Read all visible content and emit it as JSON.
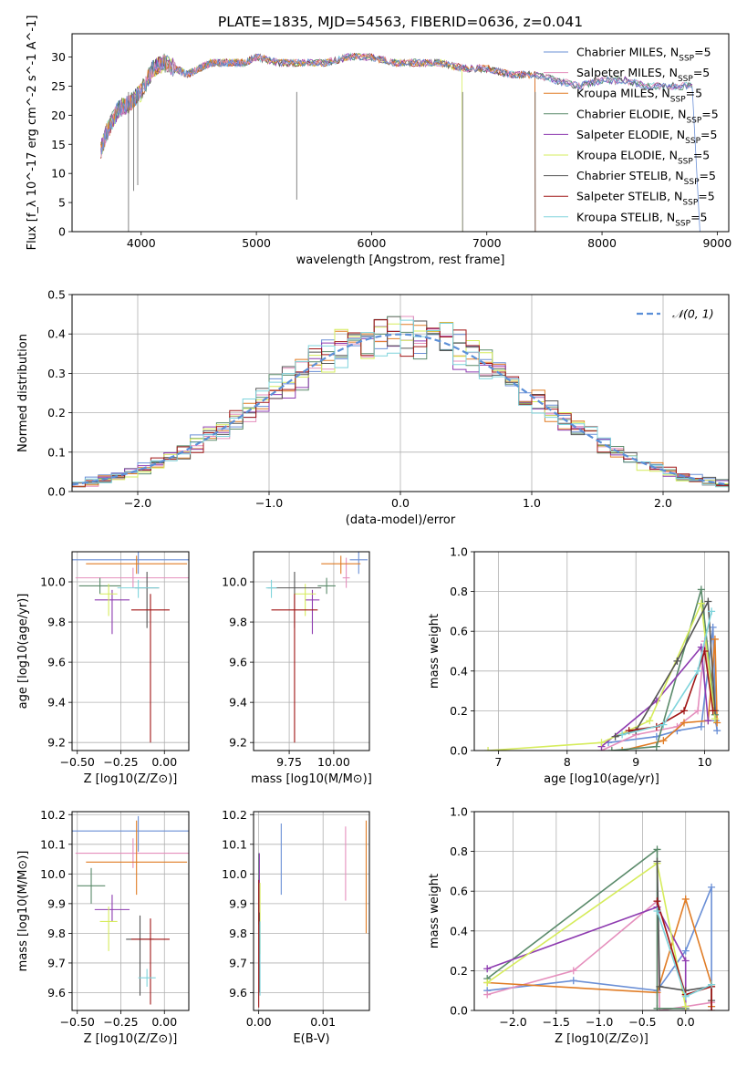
{
  "figure_title": "PLATE=1835, MJD=54563, FIBERID=0636, z=0.041",
  "series_names": [
    "Chabrier MILES, N_SSP=5",
    "Salpeter MILES, N_SSP=5",
    "Kroupa MILES, N_SSP=5",
    "Chabrier ELODIE, N_SSP=5",
    "Salpeter ELODIE, N_SSP=5",
    "Kroupa ELODIE, N_SSP=5",
    "Chabrier STELIB, N_SSP=5",
    "Salpeter STELIB, N_SSP=5",
    "Kroupa STELIB, N_SSP=5"
  ],
  "colors": [
    "#6a8fd6",
    "#e58fbd",
    "#e07c25",
    "#5a8a6a",
    "#8e3bb0",
    "#d6ec5c",
    "#555555",
    "#a01515",
    "#7fd4dc"
  ],
  "chart_data": [
    {
      "id": "spectrum",
      "type": "line",
      "xlabel": "wavelength [Angstrom, rest frame]",
      "ylabel": "Flux [f_λ 10^-17 erg cm^-2 s^-1 A^-1]",
      "xlim": [
        3400,
        9100
      ],
      "ylim": [
        0,
        34
      ],
      "xticks": [
        4000,
        5000,
        6000,
        7000,
        8000,
        9000
      ],
      "yticks": [
        0,
        5,
        10,
        15,
        20,
        25,
        30
      ],
      "grid": false,
      "legend": "upper right",
      "x": [
        3650,
        3700,
        3800,
        3900,
        4000,
        4100,
        4200,
        4300,
        4400,
        4500,
        4600,
        4700,
        4800,
        4900,
        5000,
        5200,
        5400,
        5600,
        5800,
        6000,
        6200,
        6400,
        6600,
        6800,
        7000,
        7200,
        7400,
        7600,
        7800,
        8000,
        8200,
        8400,
        8600,
        8800
      ],
      "y": [
        14,
        17,
        21,
        22,
        24,
        28,
        29,
        28,
        27,
        28,
        29,
        29,
        29,
        29,
        30,
        29,
        29,
        29,
        30,
        30,
        29,
        29,
        29,
        28,
        28,
        27,
        27,
        26,
        25,
        26,
        26,
        25,
        25,
        25
      ],
      "cutoffs": [
        {
          "series": 0,
          "x_end": 8850
        },
        {
          "series": 2,
          "x_end": 7420
        },
        {
          "series": 5,
          "x_end": 6790
        },
        {
          "series": 7,
          "x_end": 7420
        }
      ],
      "dips": [
        {
          "x": 3890,
          "y": 0
        },
        {
          "x": 3935,
          "y": 7
        },
        {
          "x": 3970,
          "y": 8
        },
        {
          "x": 5350,
          "y": 5.5
        },
        {
          "x": 6790,
          "y": 0
        },
        {
          "x": 7420,
          "y": 0
        }
      ]
    },
    {
      "id": "residuals",
      "type": "line",
      "xlabel": "(data-model)/error",
      "ylabel": "Normed distribution",
      "xlim": [
        -2.5,
        2.5
      ],
      "ylim": [
        0,
        0.5
      ],
      "xticks": [
        -2,
        -1,
        0,
        1,
        2
      ],
      "yticks": [
        0.0,
        0.1,
        0.2,
        0.3,
        0.4,
        0.5
      ],
      "grid": true,
      "legend": "upper right",
      "reference_name": "𝒩(0, 1)",
      "bin_width": 0.1,
      "bin_start": -2.5
    },
    {
      "id": "age_vs_Z",
      "type": "scatter",
      "xlabel": "Z [log10(Z/Z⊙)]",
      "ylabel": "age  [log10(age/yr)]",
      "xlim": [
        -0.53,
        0.14
      ],
      "ylim": [
        9.16,
        10.15
      ],
      "xticks": [
        -0.5,
        -0.25,
        0.0
      ],
      "yticks": [
        9.2,
        9.4,
        9.6,
        9.8,
        10.0
      ],
      "grid": true,
      "points": [
        {
          "x": -0.15,
          "y": 10.11,
          "xerr": 0.4,
          "yerr": [
            0.07,
            0.05
          ]
        },
        {
          "x": -0.18,
          "y": 10.02,
          "xerr": 0.33,
          "yerr": [
            0.05,
            0.05
          ]
        },
        {
          "x": -0.16,
          "y": 10.09,
          "xerr": 0.29,
          "yerr": [
            0.05,
            0.04
          ]
        },
        {
          "x": -0.37,
          "y": 9.98,
          "xerr": 0.12,
          "yerr": [
            0.04,
            0.04
          ]
        },
        {
          "x": -0.3,
          "y": 9.91,
          "xerr": 0.1,
          "yerr": [
            0.17,
            0.05
          ]
        },
        {
          "x": -0.32,
          "y": 9.94,
          "xerr": 0.05,
          "yerr": [
            0.11,
            0.05
          ]
        },
        {
          "x": -0.1,
          "y": 9.97,
          "xerr": 0.07,
          "yerr": [
            0.2,
            0.08
          ]
        },
        {
          "x": -0.08,
          "y": 9.86,
          "xerr": 0.11,
          "yerr": [
            0.66,
            0.08
          ]
        },
        {
          "x": -0.15,
          "y": 9.97,
          "xerr": 0.12,
          "yerr": [
            0.05,
            0.04
          ]
        }
      ]
    },
    {
      "id": "age_vs_mass",
      "type": "scatter",
      "xlabel": "mass [log10(M/M⊙)]",
      "ylabel": "",
      "xlim": [
        9.55,
        10.2
      ],
      "ylim": [
        9.16,
        10.15
      ],
      "xticks": [
        9.75,
        10.0
      ],
      "yticks": [
        9.2,
        9.4,
        9.6,
        9.8,
        10.0
      ],
      "grid": true,
      "points": [
        {
          "x": 10.14,
          "y": 10.11,
          "xerr": 0.05,
          "yerr": [
            0.07,
            0.05
          ]
        },
        {
          "x": 10.07,
          "y": 10.02,
          "xerr": 0.02,
          "yerr": [
            0.05,
            0.1
          ]
        },
        {
          "x": 10.04,
          "y": 10.09,
          "xerr": 0.11,
          "yerr": [
            0.05,
            0.04
          ]
        },
        {
          "x": 9.96,
          "y": 9.98,
          "xerr": 0.05,
          "yerr": [
            0.04,
            0.04
          ]
        },
        {
          "x": 9.88,
          "y": 9.91,
          "xerr": 0.04,
          "yerr": [
            0.17,
            0.05
          ]
        },
        {
          "x": 9.84,
          "y": 9.94,
          "xerr": 0.06,
          "yerr": [
            0.11,
            0.05
          ]
        },
        {
          "x": 9.78,
          "y": 9.97,
          "xerr": 0.15,
          "yerr": [
            0.2,
            0.08
          ]
        },
        {
          "x": 9.78,
          "y": 9.86,
          "xerr": 0.13,
          "yerr": [
            0.66,
            0.08
          ]
        },
        {
          "x": 9.65,
          "y": 9.97,
          "xerr": 0.03,
          "yerr": [
            0.05,
            0.04
          ]
        }
      ]
    },
    {
      "id": "weight_vs_age",
      "type": "line",
      "xlabel": "age  [log10(age/yr)]",
      "ylabel": "mass weight",
      "xlim": [
        6.65,
        10.35
      ],
      "ylim": [
        0,
        1
      ],
      "xticks": [
        7,
        8,
        9,
        10
      ],
      "yticks": [
        0.0,
        0.2,
        0.4,
        0.6,
        0.8,
        1.0
      ],
      "grid": true,
      "series": [
        {
          "x": [
            8.6,
            9.3,
            9.6,
            9.95,
            10.12,
            10.16,
            10.18
          ],
          "y": [
            0.04,
            0.07,
            0.1,
            0.12,
            0.62,
            0.15,
            0.1
          ]
        },
        {
          "x": [
            8.5,
            9.0,
            9.6,
            9.9,
            10.0,
            10.15
          ],
          "y": [
            0.0,
            0.08,
            0.12,
            0.2,
            0.55,
            0.2
          ]
        },
        {
          "x": [
            8.8,
            9.4,
            9.7,
            10.05,
            10.15,
            10.18
          ],
          "y": [
            0.0,
            0.05,
            0.14,
            0.15,
            0.56,
            0.14
          ]
        },
        {
          "x": [
            8.65,
            9.3,
            9.95,
            10.15
          ],
          "y": [
            0.0,
            0.02,
            0.81,
            0.18
          ]
        },
        {
          "x": [
            8.5,
            9.3,
            9.95,
            10.05
          ],
          "y": [
            0.02,
            0.25,
            0.52,
            0.15
          ]
        },
        {
          "x": [
            6.85,
            8.5,
            9.2,
            9.95,
            10.15
          ],
          "y": [
            0.0,
            0.04,
            0.15,
            0.74,
            0.16
          ]
        },
        {
          "x": [
            8.7,
            9.0,
            9.6,
            10.05,
            10.15
          ],
          "y": [
            0.07,
            0.1,
            0.45,
            0.75,
            0.2
          ]
        },
        {
          "x": [
            8.9,
            9.3,
            9.7,
            10.0,
            10.12
          ],
          "y": [
            0.1,
            0.12,
            0.2,
            0.5,
            0.2
          ]
        },
        {
          "x": [
            8.8,
            9.4,
            9.9,
            10.1
          ],
          "y": [
            0.08,
            0.13,
            0.4,
            0.7
          ]
        }
      ]
    },
    {
      "id": "mass_vs_Z",
      "type": "scatter",
      "xlabel": "Z [log10(Z/Z⊙)]",
      "ylabel": "mass [log10(M/M⊙)]",
      "xlim": [
        -0.53,
        0.14
      ],
      "ylim": [
        9.54,
        10.21
      ],
      "xticks": [
        -0.5,
        -0.25,
        0.0
      ],
      "yticks": [
        9.6,
        9.7,
        9.8,
        9.9,
        10.0,
        10.1,
        10.2
      ],
      "grid": true,
      "points": [
        {
          "x": -0.15,
          "y": 10.145,
          "xerr": 0.4,
          "yerr": [
            0.07,
            0.05
          ]
        },
        {
          "x": -0.18,
          "y": 10.07,
          "xerr": 0.33,
          "yerr": [
            0.05,
            0.05
          ]
        },
        {
          "x": -0.16,
          "y": 10.04,
          "xerr": 0.29,
          "yerr": [
            0.11,
            0.14
          ]
        },
        {
          "x": -0.42,
          "y": 9.96,
          "xerr": 0.08,
          "yerr": [
            0.06,
            0.06
          ]
        },
        {
          "x": -0.3,
          "y": 9.88,
          "xerr": 0.1,
          "yerr": [
            0.04,
            0.05
          ]
        },
        {
          "x": -0.32,
          "y": 9.84,
          "xerr": 0.05,
          "yerr": [
            0.1,
            0.05
          ]
        },
        {
          "x": -0.14,
          "y": 9.78,
          "xerr": 0.08,
          "yerr": [
            0.19,
            0.08
          ]
        },
        {
          "x": -0.08,
          "y": 9.78,
          "xerr": 0.11,
          "yerr": [
            0.22,
            0.07
          ]
        },
        {
          "x": -0.1,
          "y": 9.65,
          "xerr": 0.05,
          "yerr": [
            0.03,
            0.03
          ]
        }
      ]
    },
    {
      "id": "mass_vs_EBV",
      "type": "scatter",
      "xlabel": "E(B-V)",
      "ylabel": "",
      "xlim": [
        -0.0008,
        0.0172
      ],
      "ylim": [
        9.54,
        10.21
      ],
      "xticks": [
        0.0,
        0.01
      ],
      "yticks": [
        9.6,
        9.7,
        9.8,
        9.9,
        10.0,
        10.1,
        10.2
      ],
      "grid": true,
      "points": [
        {
          "x": 0.0035,
          "y": 10.05,
          "xerr": 0,
          "yerr": [
            0.12,
            0.12
          ]
        },
        {
          "x": 0.0135,
          "y": 10.03,
          "xerr": 0,
          "yerr": [
            0.12,
            0.13
          ]
        },
        {
          "x": 0.0167,
          "y": 9.99,
          "xerr": 0,
          "yerr": [
            0.19,
            0.19
          ]
        },
        {
          "x": 0.0,
          "y": 9.95,
          "xerr": 0,
          "yerr": [
            0.12,
            0.12
          ]
        },
        {
          "x": 0.0001,
          "y": 9.9,
          "xerr": 0,
          "yerr": [
            0.12,
            0.17
          ]
        },
        {
          "x": 0.0002,
          "y": 9.85,
          "xerr": 0,
          "yerr": [
            0.12,
            0.12
          ]
        },
        {
          "x": 0.0001,
          "y": 9.75,
          "xerr": 0,
          "yerr": [
            0.15,
            0.12
          ]
        },
        {
          "x": 0.0,
          "y": 9.75,
          "xerr": 0,
          "yerr": [
            0.2,
            0.23
          ]
        },
        {
          "x": 0.0002,
          "y": 9.72,
          "xerr": 0,
          "yerr": [
            0.13,
            0.12
          ]
        }
      ]
    },
    {
      "id": "weight_vs_Z",
      "type": "line",
      "xlabel": "Z [log10(Z/Z⊙)]",
      "ylabel": "mass weight",
      "xlim": [
        -2.45,
        0.5
      ],
      "ylim": [
        0,
        1
      ],
      "xticks": [
        -2.0,
        -1.5,
        -1.0,
        -0.5,
        0.0
      ],
      "yticks": [
        0.0,
        0.2,
        0.4,
        0.6,
        0.8,
        1.0
      ],
      "grid": true,
      "series": [
        {
          "x": [
            -2.3,
            -1.3,
            -0.33,
            0.0,
            0.3,
            0.3
          ],
          "y": [
            0.1,
            0.15,
            0.1,
            0.3,
            0.62,
            0.02
          ]
        },
        {
          "x": [
            -2.3,
            -1.3,
            -0.33,
            -0.3,
            0.3
          ],
          "y": [
            0.08,
            0.2,
            0.55,
            0.0,
            0.04
          ]
        },
        {
          "x": [
            -2.3,
            -0.33,
            0.0,
            0.3,
            0.3
          ],
          "y": [
            0.14,
            0.09,
            0.56,
            0.13,
            0.02
          ]
        },
        {
          "x": [
            -2.3,
            -0.33,
            -0.33,
            0.0
          ],
          "y": [
            0.16,
            0.81,
            0.01,
            0.01
          ]
        },
        {
          "x": [
            -2.3,
            -0.33,
            0.0,
            0.0
          ],
          "y": [
            0.21,
            0.52,
            0.25,
            0.0
          ]
        },
        {
          "x": [
            -2.3,
            -0.33,
            0.0
          ],
          "y": [
            0.14,
            0.74,
            0.02
          ]
        },
        {
          "x": [
            -0.33,
            -0.3,
            0.0,
            0.3,
            0.3
          ],
          "y": [
            0.75,
            0.12,
            0.1,
            0.12,
            0.05
          ]
        },
        {
          "x": [
            -0.33,
            0.0,
            0.3,
            0.3
          ],
          "y": [
            0.55,
            0.08,
            0.12,
            0.0
          ]
        },
        {
          "x": [
            -0.33,
            0.0,
            0.3
          ],
          "y": [
            0.5,
            0.07,
            0.13
          ]
        }
      ]
    }
  ]
}
